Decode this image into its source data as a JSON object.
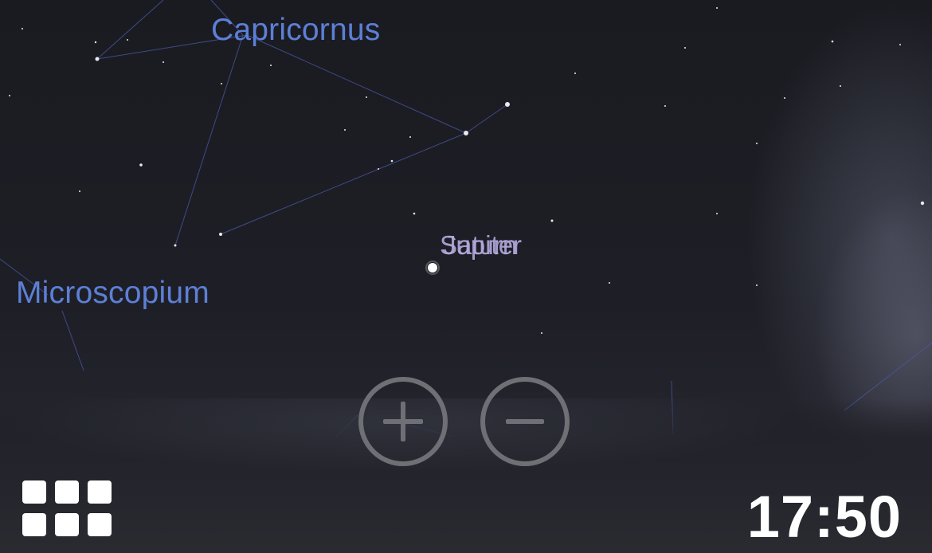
{
  "sky": {
    "constellations": [
      {
        "name": "Capricornus"
      },
      {
        "name": "Microscopium"
      }
    ],
    "planets": [
      {
        "name": "Saturn"
      },
      {
        "name": "Jupiter"
      }
    ]
  },
  "controls": {
    "zoom_in_icon": "plus-circle-icon",
    "zoom_out_icon": "minus-circle-icon",
    "menu_icon": "grid-menu-icon"
  },
  "status": {
    "time": "17:50"
  },
  "colors": {
    "constellation_label": "#5d7fd6",
    "planet_label": "#b4a9de",
    "control_gray": "#6f7075",
    "clock": "#ffffff"
  }
}
